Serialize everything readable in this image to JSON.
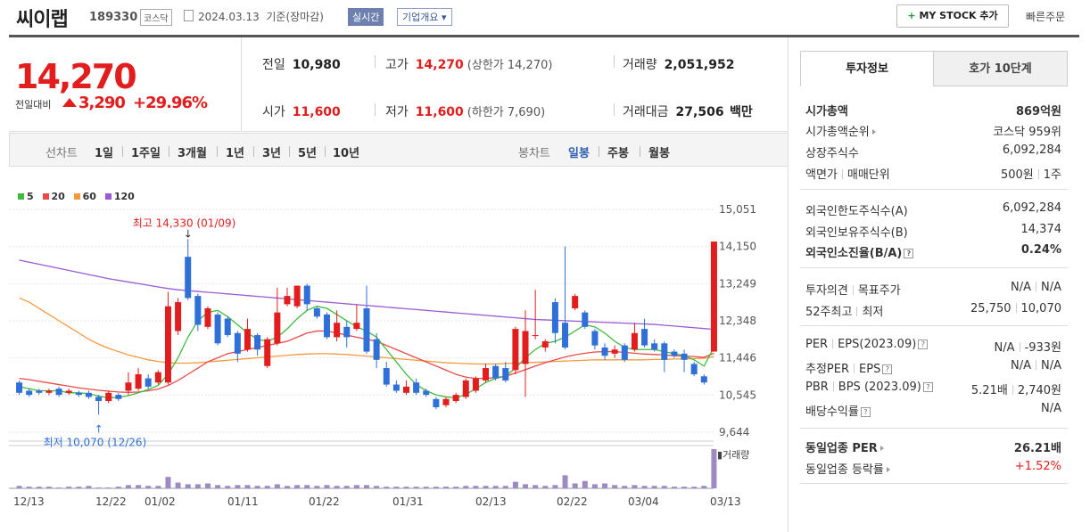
{
  "header": {
    "company": "씨이랩",
    "code": "189330",
    "market": "코스닥",
    "date": "2024.03.13",
    "basis": "기준(장마감)",
    "realtime": "실시간",
    "company_info": "기업개요",
    "mystock": "MY STOCK 추가",
    "quick_order": "빠른주문"
  },
  "price": {
    "current": "14,270",
    "compare_label": "전일대비",
    "change": "3,290",
    "change_pct": "+29.96%"
  },
  "stats": {
    "prev_close_label": "전일",
    "prev_close": "10,980",
    "high_label": "고가",
    "high": "14,270",
    "upper_limit": "(상한가 14,270)",
    "volume_label": "거래량",
    "volume": "2,051,952",
    "open_label": "시가",
    "open": "11,600",
    "low_label": "저가",
    "low": "11,600",
    "lower_limit": "(하한가 7,690)",
    "amount_label": "거래대금",
    "amount": "27,506",
    "amount_unit": "백만"
  },
  "chart_tabs": {
    "line_label": "선차트",
    "periods": [
      "1일",
      "1주일",
      "3개월",
      "1년",
      "3년",
      "5년",
      "10년"
    ],
    "candle_label": "봉차트",
    "candle_periods": [
      "일봉",
      "주봉",
      "월봉"
    ]
  },
  "legend": [
    {
      "label": "5",
      "color": "#3dbb3d"
    },
    {
      "label": "20",
      "color": "#e94a4a"
    },
    {
      "label": "60",
      "color": "#f39a3e"
    },
    {
      "label": "120",
      "color": "#9b5bd4"
    }
  ],
  "chart_data": {
    "type": "candlestick",
    "yticks": [
      "15,051",
      "14,150",
      "13,249",
      "12,348",
      "11,446",
      "10,545",
      "9,644"
    ],
    "ylim": [
      9644,
      15051
    ],
    "xticks": [
      "12/13",
      "12/22",
      "01/02",
      "01/11",
      "01/22",
      "01/31",
      "02/13",
      "02/22",
      "03/04",
      "03/13"
    ],
    "annotation_high": "최고 14,330 (01/09)",
    "annotation_low": "최저 10,070 (12/26)",
    "volume_label": "거래량",
    "candles": [
      {
        "o": 10850,
        "c": 10600,
        "h": 10900,
        "l": 10550
      },
      {
        "o": 10650,
        "c": 10550,
        "h": 10700,
        "l": 10500
      },
      {
        "o": 10650,
        "c": 10600,
        "h": 10700,
        "l": 10550
      },
      {
        "o": 10600,
        "c": 10650,
        "h": 10700,
        "l": 10550
      },
      {
        "o": 10700,
        "c": 10550,
        "h": 10750,
        "l": 10500
      },
      {
        "o": 10600,
        "c": 10650,
        "h": 10700,
        "l": 10550
      },
      {
        "o": 10600,
        "c": 10550,
        "h": 10650,
        "l": 10500
      },
      {
        "o": 10600,
        "c": 10500,
        "h": 10650,
        "l": 10450
      },
      {
        "o": 10500,
        "c": 10400,
        "h": 10550,
        "l": 10070
      },
      {
        "o": 10400,
        "c": 10600,
        "h": 10650,
        "l": 10350
      },
      {
        "o": 10550,
        "c": 10450,
        "h": 10600,
        "l": 10400
      },
      {
        "o": 10650,
        "c": 10850,
        "h": 11100,
        "l": 10550
      },
      {
        "o": 10700,
        "c": 11050,
        "h": 11200,
        "l": 10650
      },
      {
        "o": 10950,
        "c": 10750,
        "h": 11050,
        "l": 10700
      },
      {
        "o": 10850,
        "c": 11100,
        "h": 11150,
        "l": 10800
      },
      {
        "o": 10850,
        "c": 12700,
        "h": 13050,
        "l": 10800
      },
      {
        "o": 12100,
        "c": 12800,
        "h": 12900,
        "l": 12000
      },
      {
        "o": 13900,
        "c": 12900,
        "h": 14330,
        "l": 12850
      },
      {
        "o": 12950,
        "c": 12250,
        "h": 13000,
        "l": 12100
      },
      {
        "o": 12200,
        "c": 12650,
        "h": 12700,
        "l": 12150
      },
      {
        "o": 12500,
        "c": 11800,
        "h": 12550,
        "l": 11750
      },
      {
        "o": 12400,
        "c": 12000,
        "h": 12450,
        "l": 11950
      },
      {
        "o": 12050,
        "c": 11550,
        "h": 12100,
        "l": 11350
      },
      {
        "o": 11650,
        "c": 12150,
        "h": 12400,
        "l": 11600
      },
      {
        "o": 12000,
        "c": 11650,
        "h": 12050,
        "l": 11500
      },
      {
        "o": 11250,
        "c": 11900,
        "h": 11950,
        "l": 11200
      },
      {
        "o": 11800,
        "c": 12550,
        "h": 13150,
        "l": 11750
      },
      {
        "o": 12750,
        "c": 12950,
        "h": 13150,
        "l": 12700
      },
      {
        "o": 12700,
        "c": 13200,
        "h": 13200,
        "l": 12650
      },
      {
        "o": 13200,
        "c": 12750,
        "h": 13250,
        "l": 12600
      },
      {
        "o": 12650,
        "c": 12450,
        "h": 12700,
        "l": 12400
      },
      {
        "o": 12500,
        "c": 11950,
        "h": 12550,
        "l": 11900
      },
      {
        "o": 11950,
        "c": 12300,
        "h": 12600,
        "l": 11850
      },
      {
        "o": 12200,
        "c": 11950,
        "h": 12350,
        "l": 11700
      },
      {
        "o": 12150,
        "c": 12300,
        "h": 12750,
        "l": 12100
      },
      {
        "o": 12650,
        "c": 11600,
        "h": 13200,
        "l": 11550
      },
      {
        "o": 11900,
        "c": 11400,
        "h": 12050,
        "l": 11200
      },
      {
        "o": 11200,
        "c": 10800,
        "h": 11350,
        "l": 10750
      },
      {
        "o": 10800,
        "c": 10650,
        "h": 10900,
        "l": 10600
      },
      {
        "o": 10600,
        "c": 10750,
        "h": 10900,
        "l": 10550
      },
      {
        "o": 10850,
        "c": 10600,
        "h": 10950,
        "l": 10550
      },
      {
        "o": 10650,
        "c": 10550,
        "h": 10700,
        "l": 10500
      },
      {
        "o": 10450,
        "c": 10250,
        "h": 10500,
        "l": 10200
      },
      {
        "o": 10300,
        "c": 10450,
        "h": 10500,
        "l": 10250
      },
      {
        "o": 10400,
        "c": 10550,
        "h": 10600,
        "l": 10350
      },
      {
        "o": 10500,
        "c": 10900,
        "h": 10950,
        "l": 10450
      },
      {
        "o": 10650,
        "c": 10950,
        "h": 11000,
        "l": 10600
      },
      {
        "o": 10900,
        "c": 11200,
        "h": 11300,
        "l": 10850
      },
      {
        "o": 11250,
        "c": 10950,
        "h": 11300,
        "l": 10900
      },
      {
        "o": 11200,
        "c": 10900,
        "h": 11350,
        "l": 10850
      },
      {
        "o": 11150,
        "c": 12150,
        "h": 12200,
        "l": 11050
      },
      {
        "o": 11300,
        "c": 12100,
        "h": 12600,
        "l": 10500
      },
      {
        "o": 12000,
        "c": 12000,
        "h": 13100,
        "l": 11900
      },
      {
        "o": 11700,
        "c": 11850,
        "h": 11900,
        "l": 11600
      },
      {
        "o": 12800,
        "c": 12050,
        "h": 12900,
        "l": 11800
      },
      {
        "o": 12300,
        "c": 11700,
        "h": 14150,
        "l": 11650
      },
      {
        "o": 12650,
        "c": 12950,
        "h": 13000,
        "l": 12600
      },
      {
        "o": 12550,
        "c": 12200,
        "h": 12600,
        "l": 12150
      },
      {
        "o": 12100,
        "c": 11750,
        "h": 12150,
        "l": 11650
      },
      {
        "o": 11700,
        "c": 11500,
        "h": 11800,
        "l": 11400
      },
      {
        "o": 11550,
        "c": 11650,
        "h": 11750,
        "l": 11450
      },
      {
        "o": 11750,
        "c": 11400,
        "h": 11800,
        "l": 11350
      },
      {
        "o": 11650,
        "c": 12050,
        "h": 12300,
        "l": 11600
      },
      {
        "o": 12150,
        "c": 11750,
        "h": 12400,
        "l": 11700
      },
      {
        "o": 11800,
        "c": 11650,
        "h": 11900,
        "l": 11600
      },
      {
        "o": 11800,
        "c": 11400,
        "h": 11850,
        "l": 11100
      },
      {
        "o": 11600,
        "c": 11500,
        "h": 11650,
        "l": 11450
      },
      {
        "o": 11550,
        "c": 11400,
        "h": 11650,
        "l": 11100
      },
      {
        "o": 11300,
        "c": 11050,
        "h": 11350,
        "l": 11000
      },
      {
        "o": 11000,
        "c": 10850,
        "h": 11050,
        "l": 10800
      },
      {
        "o": 11600,
        "c": 14270,
        "h": 14270,
        "l": 11600
      }
    ],
    "volumes": [
      3,
      2,
      2,
      2,
      1,
      2,
      2,
      3,
      1,
      1,
      2,
      4,
      4,
      3,
      3,
      14,
      7,
      5,
      5,
      6,
      4,
      3,
      4,
      4,
      3,
      3,
      5,
      3,
      4,
      4,
      3,
      4,
      3,
      3,
      4,
      4,
      3,
      2,
      2,
      2,
      2,
      2,
      2,
      2,
      2,
      3,
      3,
      3,
      3,
      3,
      8,
      5,
      4,
      3,
      4,
      16,
      6,
      9,
      5,
      6,
      4,
      3,
      4,
      3,
      3,
      3,
      2,
      2,
      2,
      3,
      48
    ],
    "ma5": [
      10750,
      10700,
      10650,
      10650,
      10650,
      10600,
      10600,
      10580,
      10520,
      10480,
      10490,
      10530,
      10600,
      10680,
      10780,
      11050,
      11450,
      11950,
      12350,
      12550,
      12600,
      12450,
      12250,
      12050,
      11900,
      11850,
      11950,
      12150,
      12400,
      12600,
      12700,
      12650,
      12500,
      12350,
      12200,
      12100,
      11950,
      11650,
      11350,
      11050,
      10800,
      10650,
      10550,
      10500,
      10480,
      10560,
      10700,
      10850,
      10950,
      11000,
      11200,
      11450,
      11650,
      11800,
      11850,
      11950,
      12100,
      12250,
      12200,
      12050,
      11850,
      11700,
      11650,
      11650,
      11650,
      11600,
      11550,
      11500,
      11400,
      11250,
      11700
    ],
    "ma20": [
      10950,
      10920,
      10880,
      10840,
      10800,
      10760,
      10720,
      10690,
      10660,
      10640,
      10620,
      10610,
      10620,
      10650,
      10690,
      10780,
      10900,
      11050,
      11200,
      11350,
      11450,
      11550,
      11600,
      11650,
      11700,
      11750,
      11800,
      11850,
      11950,
      12050,
      12100,
      12100,
      12050,
      12000,
      11950,
      11900,
      11850,
      11750,
      11650,
      11550,
      11450,
      11350,
      11250,
      11150,
      11050,
      10980,
      10950,
      10950,
      10970,
      11000,
      11080,
      11160,
      11250,
      11330,
      11400,
      11470,
      11520,
      11560,
      11590,
      11600,
      11600,
      11580,
      11560,
      11540,
      11530,
      11520,
      11500,
      11490,
      11480,
      11460,
      11560
    ],
    "ma60": [
      12900,
      12800,
      12650,
      12500,
      12350,
      12200,
      12050,
      11900,
      11780,
      11680,
      11600,
      11520,
      11460,
      11400,
      11360,
      11330,
      11320,
      11320,
      11330,
      11350,
      11370,
      11390,
      11410,
      11430,
      11450,
      11470,
      11490,
      11510,
      11530,
      11540,
      11550,
      11550,
      11540,
      11530,
      11510,
      11490,
      11470,
      11450,
      11430,
      11410,
      11390,
      11370,
      11350,
      11330,
      11320,
      11310,
      11300,
      11300,
      11300,
      11310,
      11320,
      11330,
      11340,
      11350,
      11360,
      11370,
      11380,
      11390,
      11400,
      11400,
      11400,
      11400,
      11400,
      11400,
      11410,
      11410,
      11420,
      11420,
      11430,
      11440,
      11480
    ],
    "ma120": [
      13820,
      13770,
      13720,
      13670,
      13620,
      13570,
      13520,
      13470,
      13420,
      13370,
      13330,
      13290,
      13250,
      13210,
      13170,
      13130,
      13100,
      13080,
      13060,
      13040,
      13020,
      13000,
      12980,
      12960,
      12940,
      12920,
      12900,
      12880,
      12860,
      12840,
      12820,
      12800,
      12780,
      12760,
      12740,
      12720,
      12700,
      12680,
      12660,
      12640,
      12620,
      12600,
      12580,
      12560,
      12540,
      12520,
      12500,
      12480,
      12460,
      12440,
      12420,
      12400,
      12380,
      12370,
      12360,
      12350,
      12340,
      12330,
      12320,
      12310,
      12300,
      12290,
      12280,
      12270,
      12260,
      12240,
      12220,
      12200,
      12180,
      12160,
      12140
    ]
  },
  "right_tabs": [
    "투자정보",
    "호가 10단계"
  ],
  "invest": {
    "r1": {
      "l": "시가총액",
      "r": "869억원"
    },
    "r2": {
      "l": "시가총액순위",
      "r": "코스닥 959위"
    },
    "r3": {
      "l": "상장주식수",
      "r": "6,092,284"
    },
    "r4a": "액면가",
    "r4b": "매매단위",
    "r4r1": "500원",
    "r4r2": "1주",
    "r5": {
      "l": "외국인한도주식수(A)",
      "r": "6,092,284"
    },
    "r6": {
      "l": "외국인보유주식수(B)",
      "r": "14,374"
    },
    "r7": {
      "l": "외국인소진율(B/A)",
      "r": "0.24%"
    },
    "r8a": "투자의견",
    "r8b": "목표주가",
    "r8r1": "N/A",
    "r8r2": "N/A",
    "r9a": "52주최고",
    "r9b": "최저",
    "r9r1": "25,750",
    "r9r2": "10,070",
    "r10a": "PER",
    "r10b": "EPS(2023.09)",
    "r10r1": "N/A",
    "r10r2": "-933원",
    "r11a": "추정PER",
    "r11b": "EPS",
    "r11r1": "N/A",
    "r11r2": "N/A",
    "r12a": "PBR",
    "r12b": "BPS (2023.09)",
    "r12r1": "5.21배",
    "r12r2": "2,740원",
    "r13": {
      "l": "배당수익률",
      "r": "N/A"
    },
    "r14": {
      "l": "동일업종 PER",
      "r": "26.21배"
    },
    "r15": {
      "l": "동일업종 등락률",
      "r": "+1.52%"
    }
  }
}
